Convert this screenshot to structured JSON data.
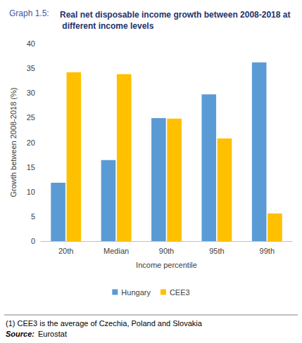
{
  "chart_data": {
    "type": "bar",
    "graph_label": "Graph 1.5:",
    "title": "Real net disposable income growth between 2008-2018 at different income levels",
    "x_label": "Income percentile",
    "y_label": "Growth between 2008-2018 (%)",
    "categories": [
      "20th",
      "Median",
      "90th",
      "95th",
      "99th"
    ],
    "series": [
      {
        "name": "Hungary",
        "color": "#5b9bd5",
        "values": [
          11.8,
          16.4,
          24.9,
          29.7,
          36.2
        ]
      },
      {
        "name": "CEE3",
        "color": "#ffc000",
        "values": [
          34.2,
          33.8,
          24.8,
          20.8,
          5.6
        ]
      }
    ],
    "ylim": [
      0,
      40
    ],
    "yticks": [
      0,
      5,
      10,
      15,
      20,
      25,
      30,
      35,
      40
    ],
    "grid": false,
    "legend": "bottom",
    "note": "(1) CEE3 is the average of Czechia, Poland and Slovakia",
    "source_label": "Source:",
    "source": "Eurostat"
  }
}
